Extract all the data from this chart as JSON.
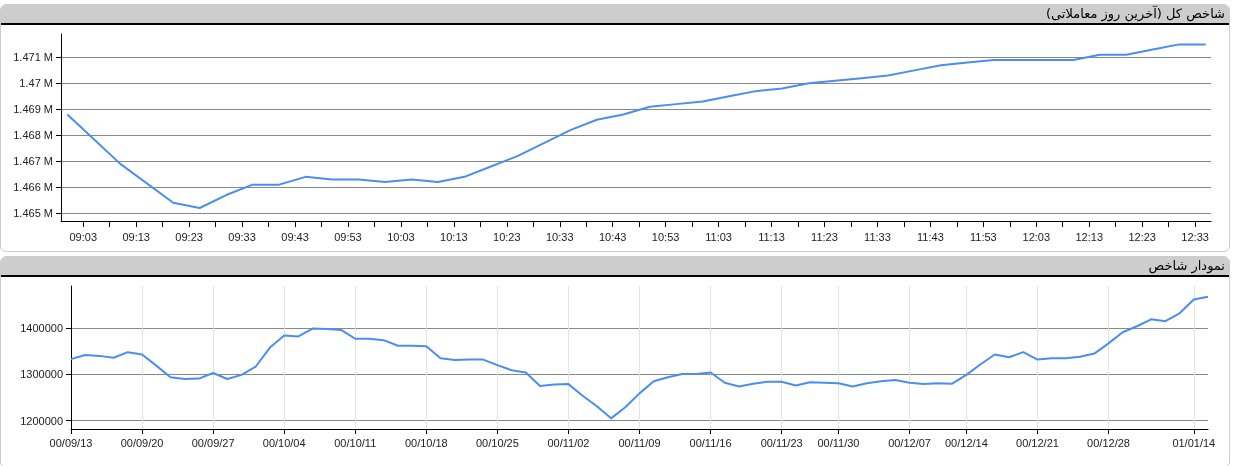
{
  "chart_data": [
    {
      "type": "line",
      "title": "شاخص کل (آخرین روز معاملاتی)",
      "x": [
        9,
        9.1667,
        9.3333,
        9.4167,
        9.5,
        9.5833,
        9.6667,
        9.75,
        9.8333,
        9.9167,
        10,
        10.0833,
        10.1667,
        10.25,
        10.3333,
        10.4167,
        10.5,
        10.5833,
        10.6667,
        10.75,
        10.8333,
        10.9167,
        11,
        11.0833,
        11.1667,
        11.25,
        11.3333,
        11.4167,
        11.5,
        11.5833,
        11.6667,
        11.75,
        11.8333,
        11.9167,
        12,
        12.0833,
        12.1667,
        12.25,
        12.3333,
        12.4167,
        12.5,
        12.5833
      ],
      "values": [
        1.4688,
        1.4669,
        1.4654,
        1.4652,
        1.4657,
        1.4661,
        1.4661,
        1.4664,
        1.4663,
        1.4663,
        1.4662,
        1.4663,
        1.4662,
        1.4664,
        1.4668,
        1.4672,
        1.4677,
        1.4682,
        1.4686,
        1.4688,
        1.4691,
        1.4692,
        1.4693,
        1.4695,
        1.4697,
        1.4698,
        1.47,
        1.4701,
        1.4702,
        1.4703,
        1.4705,
        1.4707,
        1.4708,
        1.4709,
        1.4709,
        1.4709,
        1.4709,
        1.4711,
        1.4711,
        1.4713,
        1.4715,
        1.4715
      ],
      "color": "#4a8ef0",
      "xlim": [
        8.98,
        12.6
      ],
      "xticks": [
        {
          "value": 9.05,
          "label": "09:03"
        },
        {
          "value": 9.1333,
          "label": null
        },
        {
          "value": 9.2167,
          "label": "09:13"
        },
        {
          "value": 9.3,
          "label": null
        },
        {
          "value": 9.3833,
          "label": "09:23"
        },
        {
          "value": 9.4667,
          "label": null
        },
        {
          "value": 9.55,
          "label": "09:33"
        },
        {
          "value": 9.6333,
          "label": null
        },
        {
          "value": 9.7167,
          "label": "09:43"
        },
        {
          "value": 9.8,
          "label": null
        },
        {
          "value": 9.8833,
          "label": "09:53"
        },
        {
          "value": 9.9667,
          "label": null
        },
        {
          "value": 10.05,
          "label": "10:03"
        },
        {
          "value": 10.1333,
          "label": null
        },
        {
          "value": 10.2167,
          "label": "10:13"
        },
        {
          "value": 10.3,
          "label": null
        },
        {
          "value": 10.3833,
          "label": "10:23"
        },
        {
          "value": 10.4667,
          "label": null
        },
        {
          "value": 10.55,
          "label": "10:33"
        },
        {
          "value": 10.6333,
          "label": null
        },
        {
          "value": 10.7167,
          "label": "10:43"
        },
        {
          "value": 10.8,
          "label": null
        },
        {
          "value": 10.8833,
          "label": "10:53"
        },
        {
          "value": 10.9667,
          "label": null
        },
        {
          "value": 11.05,
          "label": "11:03"
        },
        {
          "value": 11.1333,
          "label": null
        },
        {
          "value": 11.2167,
          "label": "11:13"
        },
        {
          "value": 11.3,
          "label": null
        },
        {
          "value": 11.3833,
          "label": "11:23"
        },
        {
          "value": 11.4667,
          "label": null
        },
        {
          "value": 11.55,
          "label": "11:33"
        },
        {
          "value": 11.6333,
          "label": null
        },
        {
          "value": 11.7167,
          "label": "11:43"
        },
        {
          "value": 11.8,
          "label": null
        },
        {
          "value": 11.8833,
          "label": "11:53"
        },
        {
          "value": 11.9667,
          "label": null
        },
        {
          "value": 12.05,
          "label": "12:03"
        },
        {
          "value": 12.1333,
          "label": null
        },
        {
          "value": 12.2167,
          "label": "12:13"
        },
        {
          "value": 12.3,
          "label": null
        },
        {
          "value": 12.3833,
          "label": "12:23"
        },
        {
          "value": 12.4667,
          "label": null
        },
        {
          "value": 12.55,
          "label": "12:33"
        }
      ],
      "ylim": [
        1.4647,
        1.4719
      ],
      "yticks": [
        {
          "value": 1.465,
          "label": "1.465 M"
        },
        {
          "value": 1.466,
          "label": "1.466 M"
        },
        {
          "value": 1.467,
          "label": "1.467 M"
        },
        {
          "value": 1.468,
          "label": "1.468 M"
        },
        {
          "value": 1.469,
          "label": "1.469 M"
        },
        {
          "value": 1.47,
          "label": "1.47 M"
        },
        {
          "value": 1.471,
          "label": "1.471 M"
        }
      ],
      "grid": "y",
      "marker": "none",
      "line_style": "solid"
    },
    {
      "type": "line",
      "title": "نمودار شاخص",
      "categories": [
        "00/09/13",
        null,
        null,
        null,
        null,
        "00/09/20",
        null,
        null,
        null,
        null,
        "00/09/27",
        null,
        null,
        null,
        null,
        "00/10/04",
        null,
        null,
        null,
        null,
        "00/10/11",
        null,
        null,
        null,
        null,
        "00/10/18",
        null,
        null,
        null,
        null,
        "00/10/25",
        null,
        null,
        null,
        null,
        "00/11/02",
        null,
        null,
        null,
        null,
        "00/11/09",
        null,
        null,
        null,
        null,
        "00/11/16",
        null,
        null,
        null,
        null,
        "00/11/23",
        null,
        null,
        null,
        "00/11/30",
        null,
        null,
        null,
        null,
        "00/12/07",
        null,
        null,
        null,
        "00/12/14",
        null,
        null,
        null,
        null,
        "00/12/21",
        null,
        null,
        null,
        null,
        "00/12/28",
        null,
        null,
        null,
        null,
        null,
        "01/01/14",
        null
      ],
      "values": [
        1333000,
        1342000,
        1340000,
        1336000,
        1348000,
        1343000,
        1319000,
        1294000,
        1290000,
        1291000,
        1303000,
        1290000,
        1299000,
        1317000,
        1358000,
        1384000,
        1382000,
        1399000,
        1398000,
        1396000,
        1377000,
        1377000,
        1374000,
        1362000,
        1362000,
        1361000,
        1335000,
        1331000,
        1332000,
        1332000,
        1320000,
        1309000,
        1304000,
        1275000,
        1278000,
        1279000,
        1254000,
        1231000,
        1205000,
        1229000,
        1259000,
        1285000,
        1294000,
        1301000,
        1301000,
        1304000,
        1282000,
        1274000,
        1280000,
        1284000,
        1284000,
        1276000,
        1283000,
        1282000,
        1281000,
        1274000,
        1281000,
        1285000,
        1288000,
        1282000,
        1279000,
        1281000,
        1280000,
        1299000,
        1322000,
        1343000,
        1337000,
        1348000,
        1332000,
        1335000,
        1335000,
        1338000,
        1345000,
        1367000,
        1391000,
        1404000,
        1419000,
        1415000,
        1432000,
        1462000,
        1468000
      ],
      "color": "#4a8ef0",
      "ylim": [
        1182000,
        1491000
      ],
      "yticks": [
        1200000,
        1300000,
        1400000
      ],
      "grid": true,
      "marker": "none",
      "line_style": "solid"
    }
  ]
}
